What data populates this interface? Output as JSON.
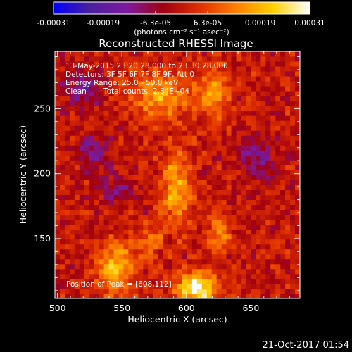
{
  "chart_data": {
    "type": "heatmap",
    "title": "Reconstructed RHESSI Image",
    "xlabel": "Heliocentric X (arcsec)",
    "ylabel": "Heliocentric Y (arcsec)",
    "xlim": [
      498,
      688
    ],
    "ylim": [
      104,
      294
    ],
    "x_ticks": [
      500,
      550,
      600,
      650
    ],
    "y_ticks": [
      150,
      200,
      250
    ],
    "colorbar": {
      "range": [
        -0.00031,
        0.00031
      ],
      "ticks": [
        -0.00031,
        -0.00019,
        -6.3e-05,
        6.3e-05,
        0.00019,
        0.00031
      ],
      "tick_labels": [
        "-0.00031",
        "-0.00019",
        "-6.3e-05",
        "6.3e-05",
        "0.00019",
        "0.00031"
      ],
      "unit_label": "(photons cm⁻² s⁻¹ asec⁻²)",
      "colors": [
        "#0000ff",
        "#4b1f9e",
        "#7d1aa0",
        "#a00010",
        "#e03000",
        "#ff8000",
        "#ffd000",
        "#ffffff"
      ]
    },
    "annotations": [
      "13-May-2015 23:20:28.000 to 23:30:28.000",
      "Detectors: 3F 5F 6F 7F 8F 9F, Att 0",
      "Energy Range: 25.0 - 50.0 keV",
      "Clean",
      "Total counts: 2.34E+04",
      "Position of Peak = [608,112]"
    ],
    "peak": {
      "x": 608,
      "y": 112
    },
    "sources": [
      {
        "x": 592,
        "y": 188,
        "sx": 8,
        "sy": 20,
        "amp": 0.000175
      },
      {
        "x": 580,
        "y": 260,
        "sx": 16,
        "sy": 12,
        "amp": 0.000165
      },
      {
        "x": 622,
        "y": 262,
        "sx": 8,
        "sy": 14,
        "amp": 0.00016
      },
      {
        "x": 545,
        "y": 128,
        "sx": 10,
        "sy": 14,
        "amp": 0.00019
      },
      {
        "x": 608,
        "y": 112,
        "sx": 11,
        "sy": 8,
        "amp": 0.00031
      },
      {
        "x": 625,
        "y": 155,
        "sx": 6,
        "sy": 10,
        "amp": 0.00014
      },
      {
        "x": 572,
        "y": 148,
        "sx": 7,
        "sy": 8,
        "amp": 0.00012
      },
      {
        "x": 520,
        "y": 265,
        "sx": 10,
        "sy": 10,
        "amp": -0.00014
      },
      {
        "x": 528,
        "y": 218,
        "sx": 9,
        "sy": 9,
        "amp": -0.00012
      },
      {
        "x": 655,
        "y": 212,
        "sx": 10,
        "sy": 12,
        "amp": -0.00012
      },
      {
        "x": 545,
        "y": 188,
        "sx": 10,
        "sy": 8,
        "amp": -9e-05
      }
    ]
  },
  "footer": {
    "timestamp": "21-Oct-2017 01:54"
  }
}
